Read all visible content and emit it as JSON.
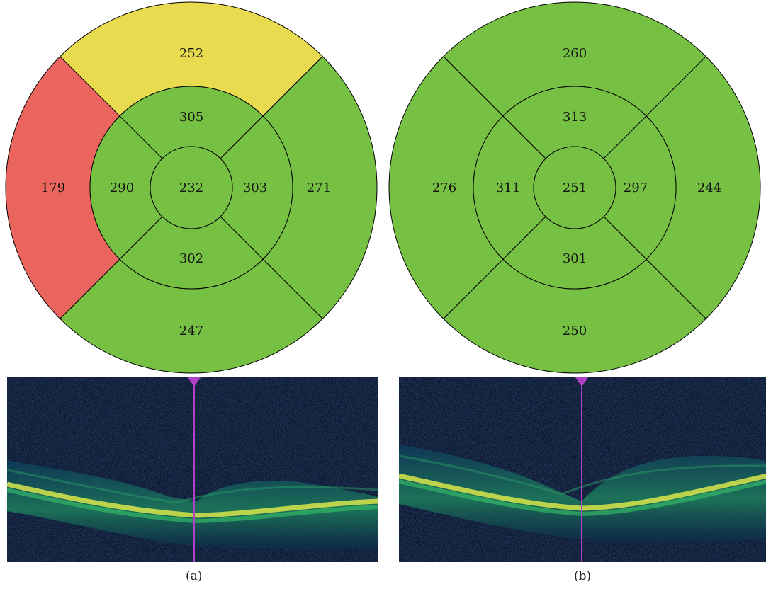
{
  "colors": {
    "normal": "#76c043",
    "borderline": "#e8db4f",
    "abnormal": "#eb655f",
    "scan_bg": "#061228",
    "marker": "#b040c8"
  },
  "panel_a": {
    "caption": "(a)",
    "thickness_map": {
      "center": "232",
      "inner": {
        "superior": "305",
        "inferior": "302",
        "nasal": "290",
        "temporal": "303"
      },
      "outer": {
        "superior": "252",
        "inferior": "247",
        "nasal": "179",
        "temporal": "271"
      },
      "status": {
        "outer_superior": "borderline",
        "outer_nasal": "abnormal"
      }
    },
    "oct_scan": {
      "marker_position": 0.5
    }
  },
  "panel_b": {
    "caption": "(b)",
    "thickness_map": {
      "center": "251",
      "inner": {
        "superior": "313",
        "inferior": "301",
        "nasal": "311",
        "temporal": "297"
      },
      "outer": {
        "superior": "260",
        "inferior": "250",
        "nasal": "276",
        "temporal": "244"
      },
      "status": {}
    },
    "oct_scan": {
      "marker_position": 0.5
    }
  }
}
